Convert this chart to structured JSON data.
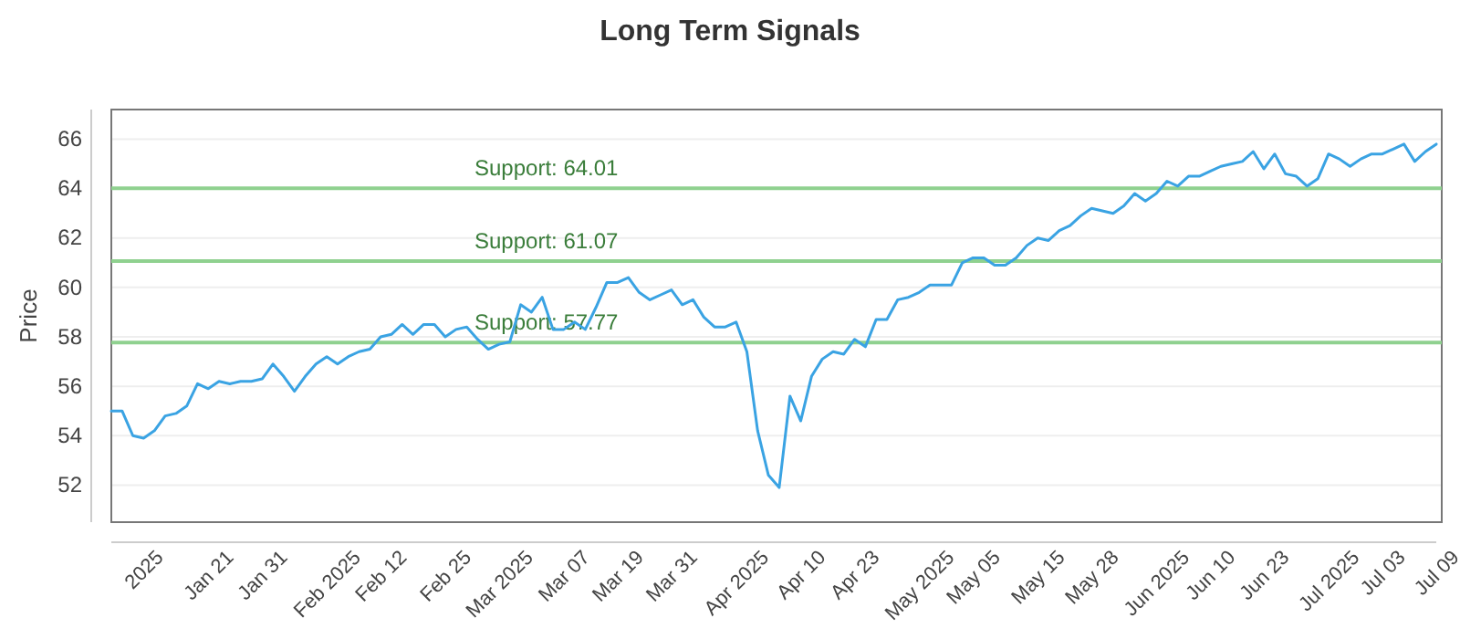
{
  "chart_data": {
    "type": "line",
    "title": "Long Term Signals",
    "ylabel": "Price",
    "categories": [
      null,
      null,
      null,
      "2025",
      null,
      null,
      null,
      null,
      null,
      "Jan 21",
      null,
      null,
      null,
      null,
      "Jan 31",
      null,
      null,
      null,
      null,
      null,
      "Feb 2025",
      null,
      null,
      null,
      null,
      "Feb 12",
      null,
      null,
      null,
      null,
      null,
      "Feb 25",
      null,
      null,
      null,
      null,
      "Mar 2025",
      null,
      null,
      null,
      null,
      null,
      "Mar 07",
      null,
      null,
      null,
      null,
      "Mar 19",
      null,
      null,
      null,
      null,
      "Mar 31",
      null,
      null,
      null,
      null,
      null,
      "Apr 2025",
      null,
      null,
      null,
      null,
      null,
      "Apr 10",
      null,
      null,
      null,
      null,
      "Apr 23",
      null,
      null,
      null,
      null,
      null,
      "May 2025",
      null,
      null,
      null,
      null,
      "May 05",
      null,
      null,
      null,
      null,
      null,
      "May 15",
      null,
      null,
      null,
      null,
      "May 28",
      null,
      null,
      null,
      null,
      null,
      "Jun 2025",
      null,
      null,
      null,
      null,
      "Jun 10",
      null,
      null,
      null,
      null,
      "Jun 23",
      null,
      null,
      null,
      null,
      null,
      "Jul 2025",
      null,
      null,
      null,
      null,
      "Jul 03",
      null,
      null,
      null,
      null,
      "Jul 09"
    ],
    "series": [
      {
        "color": "#3aa3e3",
        "values": [
          55.0,
          55.0,
          54.0,
          53.9,
          54.2,
          54.8,
          54.9,
          55.2,
          56.1,
          55.9,
          56.2,
          56.1,
          56.2,
          56.2,
          56.3,
          56.9,
          56.4,
          55.8,
          56.4,
          56.9,
          57.2,
          56.9,
          57.2,
          57.4,
          57.5,
          58.0,
          58.1,
          58.5,
          58.1,
          58.5,
          58.5,
          58.0,
          58.3,
          58.4,
          57.9,
          57.5,
          57.7,
          57.8,
          59.3,
          59.0,
          59.6,
          58.3,
          58.3,
          58.6,
          58.3,
          59.2,
          60.2,
          60.2,
          60.4,
          59.8,
          59.5,
          59.7,
          59.9,
          59.3,
          59.5,
          58.8,
          58.4,
          58.4,
          58.6,
          57.4,
          54.2,
          52.4,
          51.9,
          55.6,
          54.6,
          56.4,
          57.1,
          57.4,
          57.3,
          57.9,
          57.6,
          58.7,
          58.7,
          59.5,
          59.6,
          59.8,
          60.1,
          60.1,
          60.1,
          61.0,
          61.2,
          61.2,
          60.9,
          60.9,
          61.2,
          61.7,
          62.0,
          61.9,
          62.3,
          62.5,
          62.9,
          63.2,
          63.1,
          63.0,
          63.3,
          63.8,
          63.5,
          63.8,
          64.3,
          64.1,
          64.5,
          64.5,
          64.7,
          64.9,
          65.0,
          65.1,
          65.5,
          64.8,
          65.4,
          64.6,
          64.5,
          64.1,
          64.4,
          65.4,
          65.2,
          64.9,
          65.2,
          65.4,
          65.4,
          65.6,
          65.8,
          65.1,
          65.5,
          65.8
        ]
      }
    ],
    "ylim": [
      50.5,
      67.2
    ],
    "yticks": [
      52,
      54,
      56,
      58,
      60,
      62,
      64,
      66
    ],
    "grid": "y",
    "marker": "none",
    "line_style": "solid",
    "ref_lines": [
      {
        "axis": "y",
        "value": 64.01,
        "label": "Support: 64.01",
        "color": "#8fd18f"
      },
      {
        "axis": "y",
        "value": 61.07,
        "label": "Support: 61.07",
        "color": "#8fd18f"
      },
      {
        "axis": "y",
        "value": 57.77,
        "label": "Support: 57.77",
        "color": "#8fd18f"
      }
    ]
  }
}
